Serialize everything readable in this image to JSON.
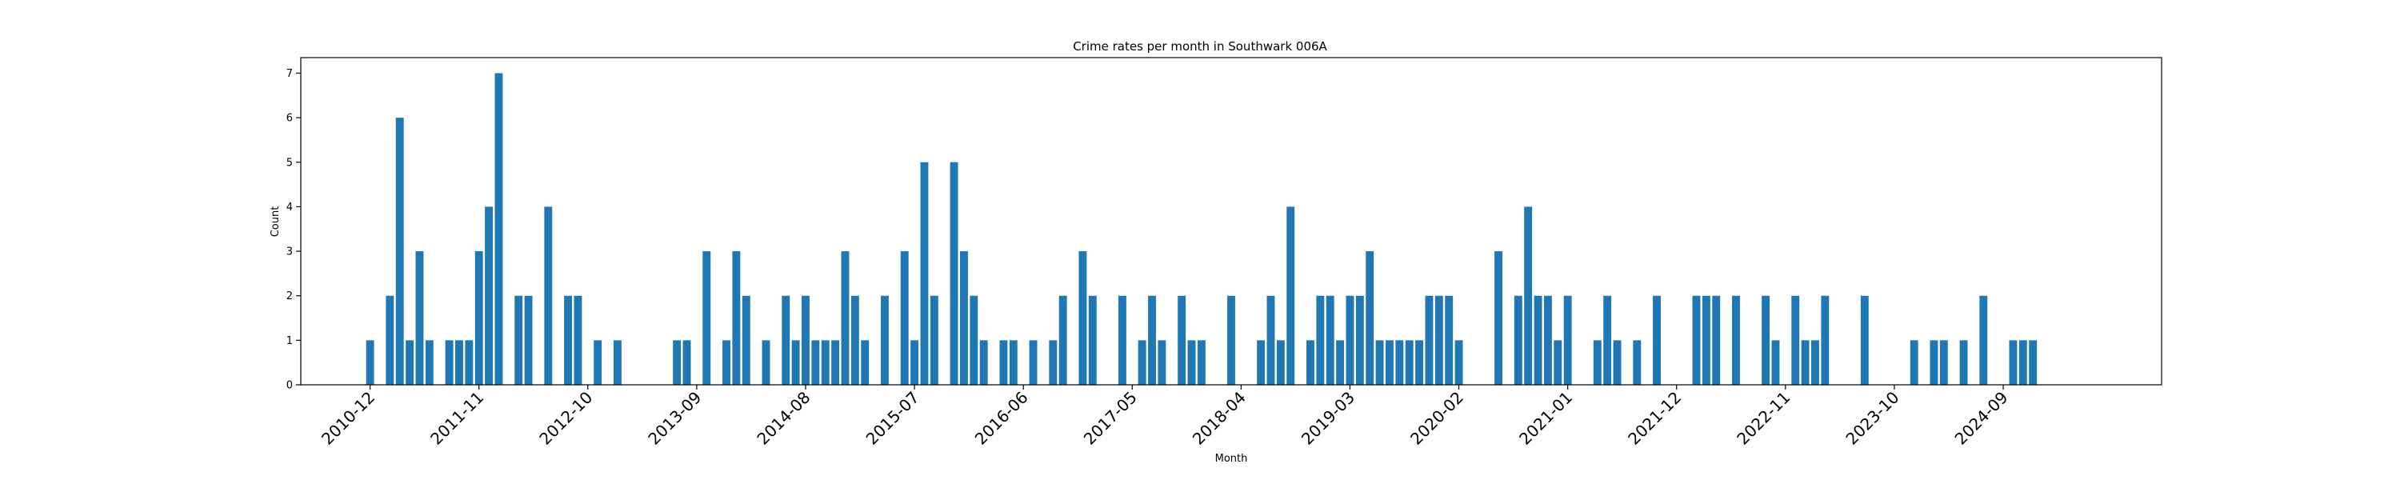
{
  "chart_data": {
    "type": "bar",
    "title": "Crime rates per month in Southwark 006A",
    "xlabel": "Month",
    "ylabel": "Count",
    "ylim": [
      0,
      7.35
    ],
    "yticks": [
      0,
      1,
      2,
      3,
      4,
      5,
      6,
      7
    ],
    "xtick_labels": [
      "2010-12",
      "2011-11",
      "2012-10",
      "2013-09",
      "2014-08",
      "2015-07",
      "2016-06",
      "2017-05",
      "2018-04",
      "2019-03",
      "2020-02",
      "2021-01",
      "2021-12",
      "2022-11",
      "2023-10",
      "2024-09"
    ],
    "grid": false,
    "legend": "none",
    "bar_color": "#1f77b4",
    "series": [
      {
        "bars": [
          {
            "x": "2010-12",
            "y": 1
          },
          {
            "x": "2011-02",
            "y": 2
          },
          {
            "x": "2011-03",
            "y": 6
          },
          {
            "x": "2011-04",
            "y": 1
          },
          {
            "x": "2011-05",
            "y": 3
          },
          {
            "x": "2011-06",
            "y": 1
          },
          {
            "x": "2011-08",
            "y": 1
          },
          {
            "x": "2011-09",
            "y": 1
          },
          {
            "x": "2011-10",
            "y": 1
          },
          {
            "x": "2011-11",
            "y": 3
          },
          {
            "x": "2011-12",
            "y": 4
          },
          {
            "x": "2012-01",
            "y": 7
          },
          {
            "x": "2012-03",
            "y": 2
          },
          {
            "x": "2012-04",
            "y": 2
          },
          {
            "x": "2012-06",
            "y": 4
          },
          {
            "x": "2012-08",
            "y": 2
          },
          {
            "x": "2012-09",
            "y": 2
          },
          {
            "x": "2012-11",
            "y": 1
          },
          {
            "x": "2013-01",
            "y": 1
          },
          {
            "x": "2013-07",
            "y": 1
          },
          {
            "x": "2013-08",
            "y": 1
          },
          {
            "x": "2013-10",
            "y": 3
          },
          {
            "x": "2013-12",
            "y": 1
          },
          {
            "x": "2014-01",
            "y": 3
          },
          {
            "x": "2014-02",
            "y": 2
          },
          {
            "x": "2014-04",
            "y": 1
          },
          {
            "x": "2014-06",
            "y": 2
          },
          {
            "x": "2014-07",
            "y": 1
          },
          {
            "x": "2014-08",
            "y": 2
          },
          {
            "x": "2014-09",
            "y": 1
          },
          {
            "x": "2014-10",
            "y": 1
          },
          {
            "x": "2014-11",
            "y": 1
          },
          {
            "x": "2014-12",
            "y": 3
          },
          {
            "x": "2015-01",
            "y": 2
          },
          {
            "x": "2015-02",
            "y": 1
          },
          {
            "x": "2015-04",
            "y": 2
          },
          {
            "x": "2015-06",
            "y": 3
          },
          {
            "x": "2015-07",
            "y": 1
          },
          {
            "x": "2015-08",
            "y": 5
          },
          {
            "x": "2015-09",
            "y": 2
          },
          {
            "x": "2015-11",
            "y": 5
          },
          {
            "x": "2015-12",
            "y": 3
          },
          {
            "x": "2016-01",
            "y": 2
          },
          {
            "x": "2016-02",
            "y": 1
          },
          {
            "x": "2016-04",
            "y": 1
          },
          {
            "x": "2016-05",
            "y": 1
          },
          {
            "x": "2016-07",
            "y": 1
          },
          {
            "x": "2016-09",
            "y": 1
          },
          {
            "x": "2016-10",
            "y": 2
          },
          {
            "x": "2016-12",
            "y": 3
          },
          {
            "x": "2017-01",
            "y": 2
          },
          {
            "x": "2017-04",
            "y": 2
          },
          {
            "x": "2017-06",
            "y": 1
          },
          {
            "x": "2017-07",
            "y": 2
          },
          {
            "x": "2017-08",
            "y": 1
          },
          {
            "x": "2017-10",
            "y": 2
          },
          {
            "x": "2017-11",
            "y": 1
          },
          {
            "x": "2017-12",
            "y": 1
          },
          {
            "x": "2018-03",
            "y": 2
          },
          {
            "x": "2018-06",
            "y": 1
          },
          {
            "x": "2018-07",
            "y": 2
          },
          {
            "x": "2018-08",
            "y": 1
          },
          {
            "x": "2018-09",
            "y": 4
          },
          {
            "x": "2018-11",
            "y": 1
          },
          {
            "x": "2018-12",
            "y": 2
          },
          {
            "x": "2019-01",
            "y": 2
          },
          {
            "x": "2019-02",
            "y": 1
          },
          {
            "x": "2019-03",
            "y": 2
          },
          {
            "x": "2019-04",
            "y": 2
          },
          {
            "x": "2019-05",
            "y": 3
          },
          {
            "x": "2019-06",
            "y": 1
          },
          {
            "x": "2019-07",
            "y": 1
          },
          {
            "x": "2019-08",
            "y": 1
          },
          {
            "x": "2019-09",
            "y": 1
          },
          {
            "x": "2019-10",
            "y": 1
          },
          {
            "x": "2019-11",
            "y": 2
          },
          {
            "x": "2019-12",
            "y": 2
          },
          {
            "x": "2020-01",
            "y": 2
          },
          {
            "x": "2020-02",
            "y": 1
          },
          {
            "x": "2020-06",
            "y": 3
          },
          {
            "x": "2020-08",
            "y": 2
          },
          {
            "x": "2020-09",
            "y": 4
          },
          {
            "x": "2020-10",
            "y": 2
          },
          {
            "x": "2020-11",
            "y": 2
          },
          {
            "x": "2020-12",
            "y": 1
          },
          {
            "x": "2021-01",
            "y": 2
          },
          {
            "x": "2021-04",
            "y": 1
          },
          {
            "x": "2021-05",
            "y": 2
          },
          {
            "x": "2021-06",
            "y": 1
          },
          {
            "x": "2021-08",
            "y": 1
          },
          {
            "x": "2021-10",
            "y": 2
          },
          {
            "x": "2022-02",
            "y": 2
          },
          {
            "x": "2022-03",
            "y": 2
          },
          {
            "x": "2022-04",
            "y": 2
          },
          {
            "x": "2022-06",
            "y": 2
          },
          {
            "x": "2022-09",
            "y": 2
          },
          {
            "x": "2022-10",
            "y": 1
          },
          {
            "x": "2022-12",
            "y": 2
          },
          {
            "x": "2023-01",
            "y": 1
          },
          {
            "x": "2023-02",
            "y": 1
          },
          {
            "x": "2023-03",
            "y": 2
          },
          {
            "x": "2023-07",
            "y": 2
          },
          {
            "x": "2023-12",
            "y": 1
          },
          {
            "x": "2024-02",
            "y": 1
          },
          {
            "x": "2024-03",
            "y": 1
          },
          {
            "x": "2024-05",
            "y": 1
          },
          {
            "x": "2024-07",
            "y": 2
          },
          {
            "x": "2024-10",
            "y": 1
          },
          {
            "x": "2024-11",
            "y": 1
          },
          {
            "x": "2024-12",
            "y": 1
          }
        ]
      }
    ]
  }
}
